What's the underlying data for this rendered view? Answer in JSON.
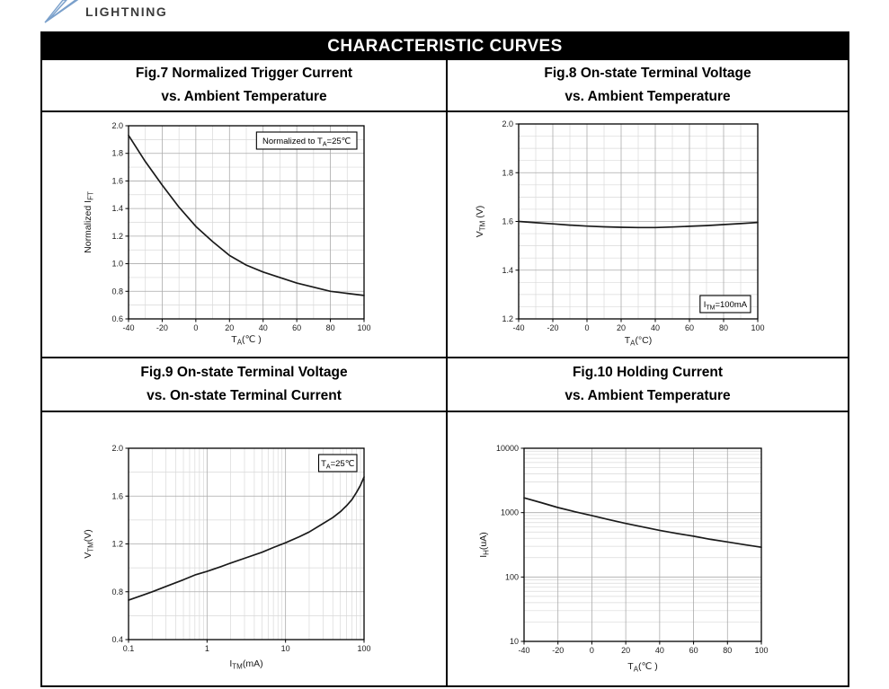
{
  "logo": {
    "text": "LIGHTNING"
  },
  "header": {
    "title": "CHARACTERISTIC CURVES"
  },
  "colors": {
    "logo_accent": "#7aa0cb",
    "logo_fill": "#e8eff7",
    "header_bg": "#000000",
    "header_fg": "#ffffff",
    "grid_minor": "#d9d9d9",
    "grid_major": "#ababab",
    "axis_frame": "#000000",
    "curve": "#1a1a1a"
  },
  "chart_data": [
    {
      "id": "fig7",
      "type": "line",
      "title_line1": "Fig.7 Normalized Trigger Current",
      "title_line2": "vs. Ambient Temperature",
      "x_axis": {
        "scale": "linear",
        "min": -40,
        "max": 100,
        "minor_step": 10,
        "ticks": [
          [
            -40,
            "-40"
          ],
          [
            -20,
            "-20"
          ],
          [
            0,
            "0"
          ],
          [
            20,
            "20"
          ],
          [
            40,
            "40"
          ],
          [
            60,
            "60"
          ],
          [
            80,
            "80"
          ],
          [
            100,
            "100"
          ]
        ],
        "label": {
          "pre": "T",
          "sub": "A",
          "post": "(℃ )"
        }
      },
      "y_axis": {
        "scale": "linear",
        "min": 0.6,
        "max": 2.0,
        "minor_step": 0.1,
        "ticks": [
          [
            2.0,
            "2.0"
          ],
          [
            1.8,
            "1.8"
          ],
          [
            1.6,
            "1.6"
          ],
          [
            1.4,
            "1.4"
          ],
          [
            1.2,
            "1.2"
          ],
          [
            1.0,
            "1.0"
          ],
          [
            0.8,
            "0.8"
          ],
          [
            0.6,
            "0.6"
          ]
        ],
        "label": {
          "pre": "Normalized I",
          "sub": "FT",
          "post": ""
        }
      },
      "annotation": {
        "pre": "Normalized to T",
        "sub": "A",
        "post": "=25℃",
        "corner": "top-right"
      },
      "series": [
        {
          "name": "normalized-trigger-current",
          "points": [
            [
              -40,
              1.93
            ],
            [
              -30,
              1.74
            ],
            [
              -20,
              1.57
            ],
            [
              -10,
              1.41
            ],
            [
              0,
              1.27
            ],
            [
              10,
              1.16
            ],
            [
              20,
              1.06
            ],
            [
              30,
              0.99
            ],
            [
              40,
              0.94
            ],
            [
              50,
              0.9
            ],
            [
              60,
              0.86
            ],
            [
              70,
              0.83
            ],
            [
              80,
              0.8
            ],
            [
              90,
              0.785
            ],
            [
              100,
              0.77
            ]
          ]
        }
      ]
    },
    {
      "id": "fig8",
      "type": "line",
      "title_line1": "Fig.8 On-state Terminal Voltage",
      "title_line2": "vs. Ambient Temperature",
      "x_axis": {
        "scale": "linear",
        "min": -40,
        "max": 100,
        "minor_step": 10,
        "ticks": [
          [
            -40,
            "-40"
          ],
          [
            -20,
            "-20"
          ],
          [
            0,
            "0"
          ],
          [
            20,
            "20"
          ],
          [
            40,
            "40"
          ],
          [
            60,
            "60"
          ],
          [
            80,
            "80"
          ],
          [
            100,
            "100"
          ]
        ],
        "label": {
          "pre": "T",
          "sub": "A",
          "post": "(°C)"
        }
      },
      "y_axis": {
        "scale": "linear",
        "min": 1.2,
        "max": 2.0,
        "minor_step": 0.05,
        "ticks": [
          [
            2.0,
            "2.0"
          ],
          [
            1.8,
            "1.8"
          ],
          [
            1.6,
            "1.6"
          ],
          [
            1.4,
            "1.4"
          ],
          [
            1.2,
            "1.2"
          ]
        ],
        "label": {
          "pre": "V",
          "sub": "TM",
          "post": " (V)"
        }
      },
      "annotation": {
        "pre": "I",
        "sub": "TM",
        "post": "=100mA",
        "corner": "bottom-right"
      },
      "series": [
        {
          "name": "on-state-voltage",
          "points": [
            [
              -40,
              1.6
            ],
            [
              -30,
              1.595
            ],
            [
              -20,
              1.59
            ],
            [
              -10,
              1.585
            ],
            [
              0,
              1.581
            ],
            [
              10,
              1.578
            ],
            [
              20,
              1.576
            ],
            [
              30,
              1.575
            ],
            [
              40,
              1.575
            ],
            [
              50,
              1.577
            ],
            [
              60,
              1.58
            ],
            [
              70,
              1.583
            ],
            [
              80,
              1.587
            ],
            [
              90,
              1.591
            ],
            [
              100,
              1.596
            ]
          ]
        }
      ]
    },
    {
      "id": "fig9",
      "type": "line",
      "title_line1": "Fig.9 On-state Terminal Voltage",
      "title_line2": "vs. On-state Terminal Current",
      "x_axis": {
        "scale": "log",
        "min": 0.1,
        "max": 100,
        "minor_step": null,
        "ticks": [
          [
            0.1,
            "0.1"
          ],
          [
            1,
            "1"
          ],
          [
            10,
            "10"
          ],
          [
            100,
            "100"
          ]
        ],
        "label": {
          "pre": "I",
          "sub": "TM",
          "post": "(mA)"
        }
      },
      "y_axis": {
        "scale": "linear",
        "min": 0.4,
        "max": 2.0,
        "minor_step": 0.2,
        "ticks": [
          [
            2.0,
            "2.0"
          ],
          [
            1.6,
            "1.6"
          ],
          [
            1.2,
            "1.2"
          ],
          [
            0.8,
            "0.8"
          ],
          [
            0.4,
            "0.4"
          ]
        ],
        "label": {
          "pre": "V",
          "sub": "TM",
          "post": "(V)"
        }
      },
      "annotation": {
        "pre": "T",
        "sub": "A",
        "post": "=25℃",
        "corner": "top-right"
      },
      "series": [
        {
          "name": "on-state-voltage-vs-current",
          "points": [
            [
              0.1,
              0.73
            ],
            [
              0.15,
              0.77
            ],
            [
              0.2,
              0.8
            ],
            [
              0.3,
              0.845
            ],
            [
              0.5,
              0.9
            ],
            [
              0.7,
              0.94
            ],
            [
              1,
              0.97
            ],
            [
              1.5,
              1.01
            ],
            [
              2,
              1.04
            ],
            [
              3,
              1.08
            ],
            [
              5,
              1.13
            ],
            [
              7,
              1.17
            ],
            [
              10,
              1.21
            ],
            [
              15,
              1.26
            ],
            [
              20,
              1.3
            ],
            [
              30,
              1.37
            ],
            [
              40,
              1.42
            ],
            [
              50,
              1.47
            ],
            [
              60,
              1.52
            ],
            [
              70,
              1.57
            ],
            [
              80,
              1.63
            ],
            [
              90,
              1.69
            ],
            [
              100,
              1.76
            ]
          ]
        }
      ]
    },
    {
      "id": "fig10",
      "type": "line",
      "title_line1": "Fig.10 Holding Current",
      "title_line2": "vs. Ambient Temperature",
      "x_axis": {
        "scale": "linear",
        "min": -40,
        "max": 100,
        "minor_step": null,
        "ticks": [
          [
            -40,
            "-40"
          ],
          [
            -20,
            "-20"
          ],
          [
            0,
            "0"
          ],
          [
            20,
            "20"
          ],
          [
            40,
            "40"
          ],
          [
            60,
            "60"
          ],
          [
            80,
            "80"
          ],
          [
            100,
            "100"
          ]
        ],
        "label": {
          "pre": "T",
          "sub": "A",
          "post": "(℃ )"
        }
      },
      "y_axis": {
        "scale": "log",
        "min": 10,
        "max": 10000,
        "minor_step": null,
        "ticks": [
          [
            10000,
            "10000"
          ],
          [
            1000,
            "1000"
          ],
          [
            100,
            "100"
          ],
          [
            10,
            "10"
          ]
        ],
        "label": {
          "pre": "I",
          "sub": "H",
          "post": "(uA)"
        }
      },
      "annotation": null,
      "series": [
        {
          "name": "holding-current",
          "points": [
            [
              -40,
              1700
            ],
            [
              -30,
              1430
            ],
            [
              -20,
              1200
            ],
            [
              -10,
              1030
            ],
            [
              0,
              900
            ],
            [
              10,
              780
            ],
            [
              20,
              680
            ],
            [
              30,
              600
            ],
            [
              40,
              530
            ],
            [
              50,
              475
            ],
            [
              60,
              430
            ],
            [
              70,
              385
            ],
            [
              80,
              350
            ],
            [
              90,
              318
            ],
            [
              100,
              290
            ]
          ]
        }
      ]
    }
  ]
}
